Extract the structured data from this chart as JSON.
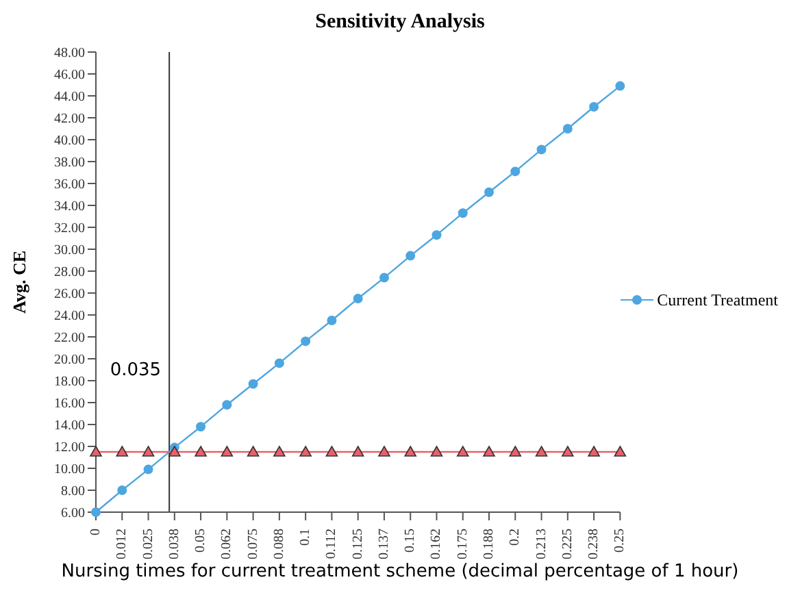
{
  "chart_data": {
    "type": "line",
    "title": "Sensitivity Analysis",
    "xlabel": "Nursing times for current treatment scheme (decimal percentage of 1 hour)",
    "ylabel": "Avg. CE",
    "x": [
      0,
      0.0125,
      0.025,
      0.0375,
      0.05,
      0.0625,
      0.075,
      0.0875,
      0.1,
      0.1125,
      0.125,
      0.1375,
      0.15,
      0.1625,
      0.175,
      0.1875,
      0.2,
      0.2125,
      0.225,
      0.2375,
      0.25
    ],
    "series": [
      {
        "name": "Current Treatment",
        "color": "#4da6e0",
        "marker": "circle",
        "values": [
          6.0,
          8.0,
          9.9,
          11.9,
          13.8,
          15.8,
          17.7,
          19.6,
          21.6,
          23.5,
          25.5,
          27.4,
          29.4,
          31.3,
          33.3,
          35.2,
          37.1,
          39.1,
          41.0,
          43.0,
          44.9
        ]
      },
      {
        "color": "#e8606a",
        "marker": "triangle",
        "values": [
          11.5,
          11.5,
          11.5,
          11.5,
          11.5,
          11.5,
          11.5,
          11.5,
          11.5,
          11.5,
          11.5,
          11.5,
          11.5,
          11.5,
          11.5,
          11.5,
          11.5,
          11.5,
          11.5,
          11.5,
          11.5
        ]
      }
    ],
    "xlim": [
      0,
      0.25
    ],
    "xticks": [
      0,
      {
        "value": 0.0125,
        "label": "0.012"
      },
      0.025,
      {
        "value": 0.0375,
        "label": "0.038"
      },
      0.05,
      {
        "value": 0.0625,
        "label": "0.062"
      },
      0.075,
      {
        "value": 0.0875,
        "label": "0.088"
      },
      0.1,
      {
        "value": 0.1125,
        "label": "0.112"
      },
      0.125,
      {
        "value": 0.1375,
        "label": "0.137"
      },
      0.15,
      {
        "value": 0.1625,
        "label": "0.162"
      },
      0.175,
      {
        "value": 0.1875,
        "label": "0.188"
      },
      0.2,
      {
        "value": 0.2125,
        "label": "0.213"
      },
      0.225,
      {
        "value": 0.2375,
        "label": "0.238"
      },
      0.25
    ],
    "ylim": [
      6,
      48
    ],
    "yticks": [
      {
        "value": 6,
        "label": "6.00"
      },
      {
        "value": 8,
        "label": "8.00"
      },
      {
        "value": 10,
        "label": "10.00"
      },
      {
        "value": 12,
        "label": "12.00"
      },
      {
        "value": 14,
        "label": "14.00"
      },
      {
        "value": 16,
        "label": "16.00"
      },
      {
        "value": 18,
        "label": "18.00"
      },
      {
        "value": 20,
        "label": "20.00"
      },
      {
        "value": 22,
        "label": "22.00"
      },
      {
        "value": 24,
        "label": "24.00"
      },
      {
        "value": 26,
        "label": "26.00"
      },
      {
        "value": 28,
        "label": "28.00"
      },
      {
        "value": 30,
        "label": "30.00"
      },
      {
        "value": 32,
        "label": "32.00"
      },
      {
        "value": 34,
        "label": "34.00"
      },
      {
        "value": 36,
        "label": "36.00"
      },
      {
        "value": 38,
        "label": "38.00"
      },
      {
        "value": 40,
        "label": "40.00"
      },
      {
        "value": 42,
        "label": "42.00"
      },
      {
        "value": 44,
        "label": "44.00"
      },
      {
        "value": 46,
        "label": "46.00"
      },
      {
        "value": 48,
        "label": "48.00"
      }
    ],
    "ref_lines": [
      {
        "axis": "x",
        "value": 0.035,
        "label": "0.035",
        "color": "#333333"
      }
    ],
    "legend": "right",
    "grid": false
  }
}
